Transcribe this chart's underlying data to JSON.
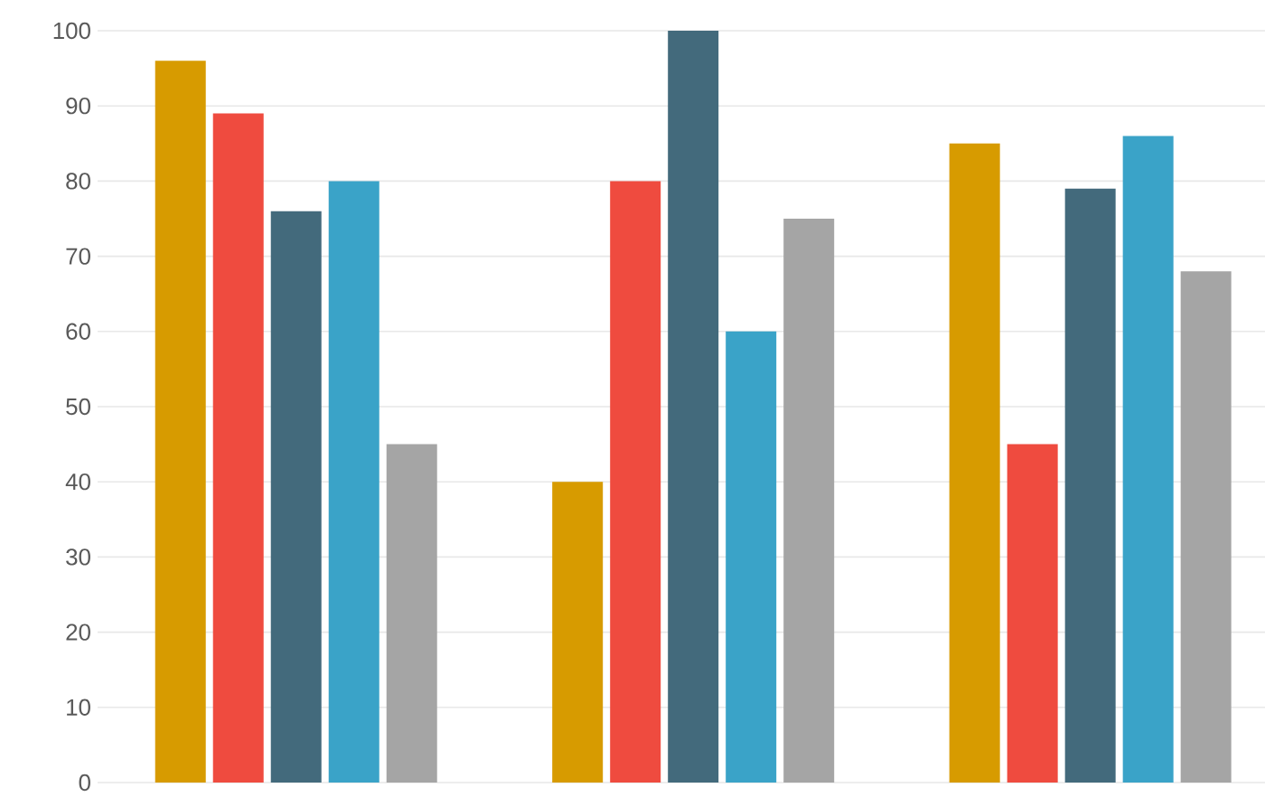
{
  "chart_data": {
    "type": "bar",
    "categories": [
      null,
      null,
      null
    ],
    "series": [
      {
        "color": "#d79b00",
        "values": [
          96,
          40,
          85
        ]
      },
      {
        "color": "#ef4b3f",
        "values": [
          89,
          80,
          45
        ]
      },
      {
        "color": "#436a7c",
        "values": [
          76,
          100,
          79
        ]
      },
      {
        "color": "#3aa3c8",
        "values": [
          80,
          60,
          86
        ]
      },
      {
        "color": "#a5a5a5",
        "values": [
          45,
          75,
          68
        ]
      }
    ],
    "ylim": [
      0,
      100
    ],
    "yticks": [
      0,
      10,
      20,
      30,
      40,
      50,
      60,
      70,
      80,
      90,
      100
    ],
    "grid": "y"
  }
}
